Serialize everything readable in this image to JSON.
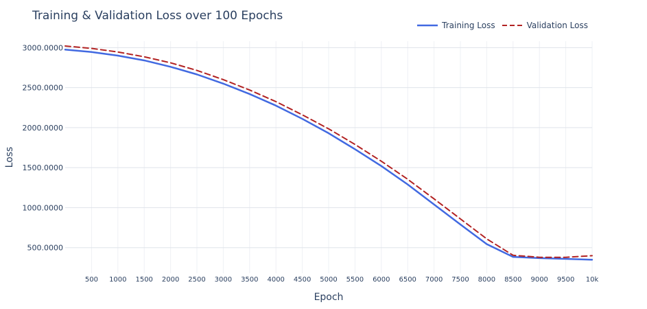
{
  "chart_data": {
    "type": "line",
    "title": "Training & Validation Loss over 100 Epochs",
    "xlabel": "Epoch",
    "ylabel": "Loss",
    "xlim": [
      0,
      10000
    ],
    "ylim": [
      180,
      3080
    ],
    "x_ticks": [
      500,
      1000,
      1500,
      2000,
      2500,
      3000,
      3500,
      4000,
      4500,
      5000,
      5500,
      6000,
      6500,
      7000,
      7500,
      8000,
      8500,
      9000,
      9500,
      10000
    ],
    "x_tick_labels": [
      "500",
      "1000",
      "1500",
      "2000",
      "2500",
      "3000",
      "3500",
      "4000",
      "4500",
      "5000",
      "5500",
      "6000",
      "6500",
      "7000",
      "7500",
      "8000",
      "8500",
      "9000",
      "9500",
      "10k"
    ],
    "y_ticks": [
      500,
      1000,
      1500,
      2000,
      2500,
      3000
    ],
    "y_tick_labels": [
      "500.0000",
      "1000.0000",
      "1500.0000",
      "2000.0000",
      "2500.0000",
      "3000.0000"
    ],
    "grid": true,
    "legend_position": "top-right",
    "x": [
      0,
      500,
      1000,
      1500,
      2000,
      2500,
      3000,
      3500,
      4000,
      4500,
      5000,
      5500,
      6000,
      6500,
      7000,
      7500,
      8000,
      8500,
      9000,
      9500,
      10000
    ],
    "series": [
      {
        "name": "Training Loss",
        "color": "#4169e1",
        "dash": "solid",
        "values": [
          2975,
          2945,
          2900,
          2840,
          2760,
          2665,
          2550,
          2420,
          2275,
          2110,
          1930,
          1730,
          1520,
          1290,
          1040,
          790,
          545,
          385,
          370,
          360,
          350
        ]
      },
      {
        "name": "Validation Loss",
        "color": "#b22222",
        "dash": "dashed",
        "values": [
          3020,
          2990,
          2945,
          2885,
          2810,
          2715,
          2600,
          2470,
          2325,
          2160,
          1985,
          1790,
          1580,
          1355,
          1110,
          860,
          610,
          405,
          380,
          380,
          400
        ]
      }
    ]
  }
}
